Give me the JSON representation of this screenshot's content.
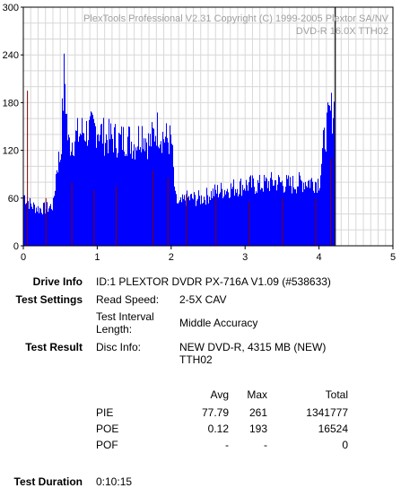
{
  "chart_data": {
    "type": "bar",
    "watermark_line1": "PlexTools Professional V2.31 Copyright (C) 1999-2005 Plextor SA/NV",
    "watermark_line2": "DVD-R   16.0X   TTH02",
    "xlim": [
      0,
      5
    ],
    "ylim": [
      0,
      300
    ],
    "x_ticks": [
      "0",
      "1",
      "2",
      "3",
      "4",
      "5"
    ],
    "y_ticks": [
      "0",
      "60",
      "120",
      "180",
      "240",
      "300"
    ],
    "grid": true,
    "series": [
      {
        "color": "#0000ff",
        "x": [
          0.0,
          0.1,
          0.2,
          0.3,
          0.4,
          0.45,
          0.5,
          0.55,
          0.6,
          0.7,
          0.8,
          0.9,
          1.0,
          1.1,
          1.2,
          1.3,
          1.4,
          1.5,
          1.6,
          1.7,
          1.8,
          1.9,
          2.0,
          2.05,
          2.1,
          2.2,
          2.4,
          2.6,
          2.8,
          3.0,
          3.2,
          3.4,
          3.6,
          3.8,
          4.0,
          4.05,
          4.1,
          4.15,
          4.2
        ],
        "y": [
          75,
          60,
          55,
          55,
          60,
          120,
          135,
          260,
          150,
          160,
          170,
          170,
          175,
          160,
          160,
          155,
          160,
          150,
          170,
          150,
          175,
          160,
          155,
          70,
          60,
          70,
          70,
          80,
          85,
          90,
          90,
          95,
          90,
          95,
          95,
          145,
          175,
          195,
          205
        ]
      },
      {
        "color": "#800000",
        "x": [
          0.05,
          0.3,
          0.65,
          0.95,
          1.25,
          1.75,
          1.95,
          2.2,
          2.6,
          3.05,
          3.5,
          3.95,
          4.15
        ],
        "y": [
          195,
          60,
          80,
          70,
          75,
          95,
          85,
          65,
          60,
          55,
          60,
          60,
          110
        ]
      }
    ],
    "marker_x": 4.22
  },
  "drive_info": {
    "label": "Drive Info",
    "value": "ID:1 PLEXTOR DVDR PX-716A V1.09 (#538633)"
  },
  "test_settings": {
    "label": "Test Settings",
    "read_speed_label": "Read Speed:",
    "read_speed_value": "2-5X CAV",
    "interval_label_1": "Test Interval",
    "interval_label_2": "Length:",
    "interval_value": "Middle Accuracy"
  },
  "test_result": {
    "label": "Test Result",
    "disc_info_label": "Disc Info:",
    "disc_info_value_1": "NEW DVD-R, 4315 MB (NEW)",
    "disc_info_value_2": "TTH02"
  },
  "stats": {
    "headers": {
      "avg": "Avg",
      "max": "Max",
      "total": "Total"
    },
    "rows": [
      {
        "name": "PIE",
        "avg": "77.79",
        "max": "261",
        "total": "1341777"
      },
      {
        "name": "POE",
        "avg": "0.12",
        "max": "193",
        "total": "16524"
      },
      {
        "name": "POF",
        "avg": "-",
        "max": "-",
        "total": "0"
      }
    ]
  },
  "test_duration": {
    "label": "Test Duration",
    "value": "0:10:15"
  }
}
